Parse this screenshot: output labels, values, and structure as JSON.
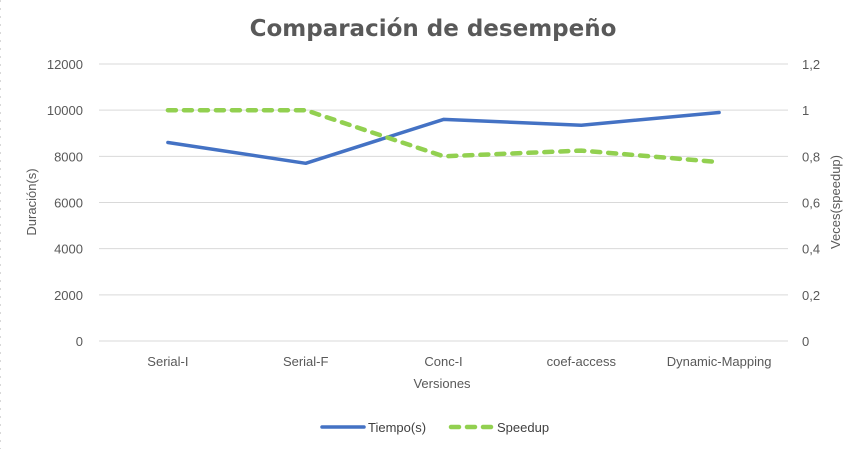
{
  "chart_data": {
    "type": "line",
    "title": "Comparación de desempeño",
    "xlabel": "Versiones",
    "ylabel": "Duración(s)",
    "y2label": "Veces(speedup)",
    "categories": [
      "Serial-I",
      "Serial-F",
      "Conc-I",
      "coef-access",
      "Dynamic-Mapping"
    ],
    "ylim": [
      0,
      12000
    ],
    "yticks": [
      "0",
      "2000",
      "4000",
      "6000",
      "8000",
      "10000",
      "12000"
    ],
    "y2lim": [
      0,
      1.2
    ],
    "y2ticks": [
      "0",
      "0,2",
      "0,4",
      "0,6",
      "0,8",
      "1",
      "1,2"
    ],
    "grid": true,
    "legend": "bottom",
    "series": [
      {
        "name": "Tiempo(s)",
        "axis": "left",
        "values": [
          8600,
          7700,
          9600,
          9350,
          9900
        ],
        "color": "#4472c4",
        "style": "solid"
      },
      {
        "name": "Speedup",
        "axis": "right",
        "values": [
          1.0,
          1.0,
          0.8,
          0.825,
          0.775
        ],
        "color": "#92d050",
        "style": "dashed"
      }
    ]
  }
}
